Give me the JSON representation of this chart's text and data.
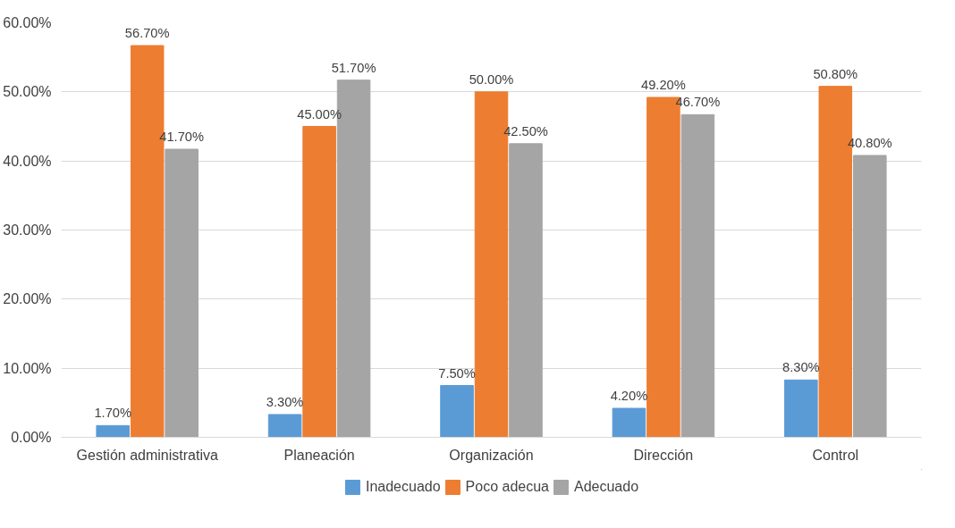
{
  "chart_data": {
    "type": "bar",
    "categories": [
      "Gestión administrativa",
      "Planeación",
      "Organización",
      "Dirección",
      "Control"
    ],
    "series": [
      {
        "name": "Inadecuado",
        "color": "#5b9bd5",
        "values": [
          1.7,
          3.3,
          7.5,
          4.2,
          8.3
        ],
        "value_labels": [
          "1.70%",
          "3.30%",
          "7.50%",
          "4.20%",
          "8.30%"
        ]
      },
      {
        "name": "Poco adecua",
        "color": "#ed7d31",
        "values": [
          56.7,
          45.0,
          50.0,
          49.2,
          50.8
        ],
        "value_labels": [
          "56.70%",
          "45.00%",
          "50.00%",
          "49.20%",
          "50.80%"
        ]
      },
      {
        "name": "Adecuado",
        "color": "#a5a5a5",
        "values": [
          41.7,
          51.7,
          42.5,
          46.7,
          40.8
        ],
        "value_labels": [
          "41.70%",
          "51.70%",
          "42.50%",
          "46.70%",
          "40.80%"
        ]
      }
    ],
    "ylim": [
      0,
      60
    ],
    "yticks": [
      {
        "value": 0,
        "label": "0.00%"
      },
      {
        "value": 10,
        "label": "10.00%"
      },
      {
        "value": 20,
        "label": "20.00%"
      },
      {
        "value": 30,
        "label": "30.00%"
      },
      {
        "value": 40,
        "label": "40.00%"
      },
      {
        "value": 50,
        "label": "50.00%"
      },
      {
        "value": 60,
        "label": "60.00%"
      }
    ],
    "grid": "y",
    "legend": "bottom"
  }
}
